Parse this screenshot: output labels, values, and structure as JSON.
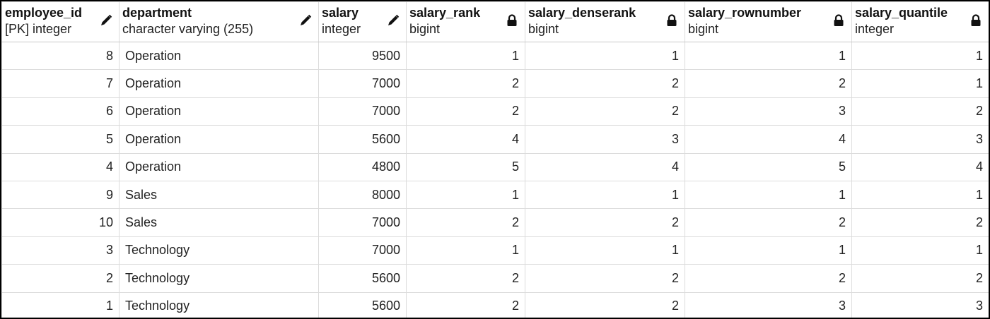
{
  "columns": [
    {
      "name": "employee_id",
      "type": "[PK] integer",
      "icon": "pencil-icon",
      "align": "right"
    },
    {
      "name": "department",
      "type": "character varying (255)",
      "icon": "pencil-icon",
      "align": "left"
    },
    {
      "name": "salary",
      "type": "integer",
      "icon": "pencil-icon",
      "align": "right"
    },
    {
      "name": "salary_rank",
      "type": "bigint",
      "icon": "lock-icon",
      "align": "right"
    },
    {
      "name": "salary_denserank",
      "type": "bigint",
      "icon": "lock-icon",
      "align": "right"
    },
    {
      "name": "salary_rownumber",
      "type": "bigint",
      "icon": "lock-icon",
      "align": "right"
    },
    {
      "name": "salary_quantile",
      "type": "integer",
      "icon": "lock-icon",
      "align": "right"
    }
  ],
  "rows": [
    [
      "8",
      "Operation",
      "9500",
      "1",
      "1",
      "1",
      "1"
    ],
    [
      "7",
      "Operation",
      "7000",
      "2",
      "2",
      "2",
      "1"
    ],
    [
      "6",
      "Operation",
      "7000",
      "2",
      "2",
      "3",
      "2"
    ],
    [
      "5",
      "Operation",
      "5600",
      "4",
      "3",
      "4",
      "3"
    ],
    [
      "4",
      "Operation",
      "4800",
      "5",
      "4",
      "5",
      "4"
    ],
    [
      "9",
      "Sales",
      "8000",
      "1",
      "1",
      "1",
      "1"
    ],
    [
      "10",
      "Sales",
      "7000",
      "2",
      "2",
      "2",
      "2"
    ],
    [
      "3",
      "Technology",
      "7000",
      "1",
      "1",
      "1",
      "1"
    ],
    [
      "2",
      "Technology",
      "5600",
      "2",
      "2",
      "2",
      "2"
    ],
    [
      "1",
      "Technology",
      "5600",
      "2",
      "2",
      "3",
      "3"
    ]
  ]
}
